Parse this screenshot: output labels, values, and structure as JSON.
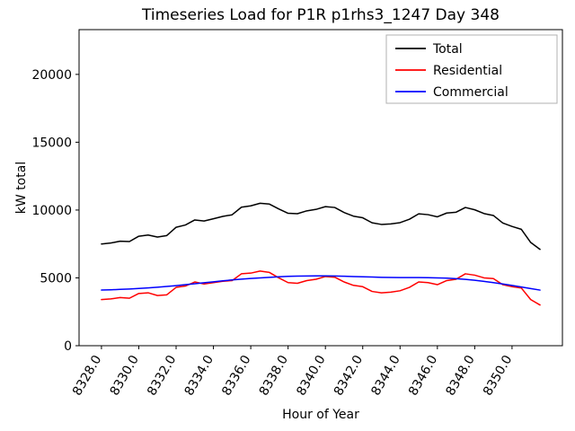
{
  "chart_data": {
    "type": "line",
    "title": "Timeseries Load for P1R p1rhs3_1247  Day 348",
    "xlabel": "Hour of Year",
    "ylabel": "kW total",
    "xlim": [
      8326.8,
      8352.7
    ],
    "ylim": [
      0,
      23300
    ],
    "grid": false,
    "legend_position": "upper right",
    "x_ticks": [
      8328,
      8330,
      8332,
      8334,
      8336,
      8338,
      8340,
      8342,
      8344,
      8346,
      8348,
      8350
    ],
    "x_tick_labels": [
      "8328.0",
      "8330.0",
      "8332.0",
      "8334.0",
      "8336.0",
      "8338.0",
      "8340.0",
      "8342.0",
      "8344.0",
      "8346.0",
      "8348.0",
      "8350.0"
    ],
    "y_ticks": [
      0,
      5000,
      10000,
      15000,
      20000
    ],
    "y_tick_labels": [
      "0",
      "5000",
      "10000",
      "15000",
      "20000"
    ],
    "x": [
      8328.0,
      8328.5,
      8329.0,
      8329.5,
      8330.0,
      8330.5,
      8331.0,
      8331.5,
      8332.0,
      8332.5,
      8333.0,
      8333.5,
      8334.0,
      8334.5,
      8335.0,
      8335.5,
      8336.0,
      8336.5,
      8337.0,
      8337.5,
      8338.0,
      8338.5,
      8339.0,
      8339.5,
      8340.0,
      8340.5,
      8341.0,
      8341.5,
      8342.0,
      8342.5,
      8343.0,
      8343.5,
      8344.0,
      8344.5,
      8345.0,
      8345.5,
      8346.0,
      8346.5,
      8347.0,
      8347.5,
      8348.0,
      8348.5,
      8349.0,
      8349.5,
      8350.0,
      8350.5,
      8351.0,
      8351.5
    ],
    "series": [
      {
        "name": "Total",
        "color": "#000000",
        "values": [
          7500,
          7570,
          7700,
          7680,
          8070,
          8160,
          8010,
          8120,
          8730,
          8900,
          9270,
          9190,
          9360,
          9530,
          9650,
          10210,
          10310,
          10500,
          10440,
          10080,
          9760,
          9730,
          9940,
          10050,
          10250,
          10190,
          9820,
          9550,
          9430,
          9060,
          8940,
          8980,
          9070,
          9320,
          9720,
          9660,
          9500,
          9780,
          9840,
          10190,
          10020,
          9740,
          9600,
          9050,
          8790,
          8580,
          7610,
          7100
        ]
      },
      {
        "name": "Residential",
        "color": "#ff0000",
        "values": [
          3400,
          3450,
          3550,
          3500,
          3850,
          3900,
          3700,
          3750,
          4300,
          4400,
          4700,
          4550,
          4650,
          4750,
          4800,
          5300,
          5350,
          5500,
          5400,
          5000,
          4650,
          4600,
          4800,
          4900,
          5100,
          5050,
          4700,
          4450,
          4350,
          4000,
          3900,
          3950,
          4050,
          4300,
          4700,
          4650,
          4500,
          4800,
          4900,
          5300,
          5200,
          5000,
          4950,
          4500,
          4350,
          4250,
          3400,
          3000
        ]
      },
      {
        "name": "Commercial",
        "color": "#0000ff",
        "values": [
          4100,
          4120,
          4150,
          4180,
          4220,
          4260,
          4310,
          4370,
          4430,
          4500,
          4570,
          4640,
          4710,
          4780,
          4850,
          4910,
          4960,
          5000,
          5040,
          5080,
          5110,
          5130,
          5140,
          5150,
          5150,
          5140,
          5120,
          5100,
          5080,
          5060,
          5040,
          5030,
          5020,
          5020,
          5020,
          5010,
          5000,
          4980,
          4940,
          4890,
          4820,
          4740,
          4650,
          4550,
          4440,
          4330,
          4210,
          4100
        ]
      }
    ],
    "legend_border_color": "#b0b0b0",
    "axes_color": "#000000"
  }
}
